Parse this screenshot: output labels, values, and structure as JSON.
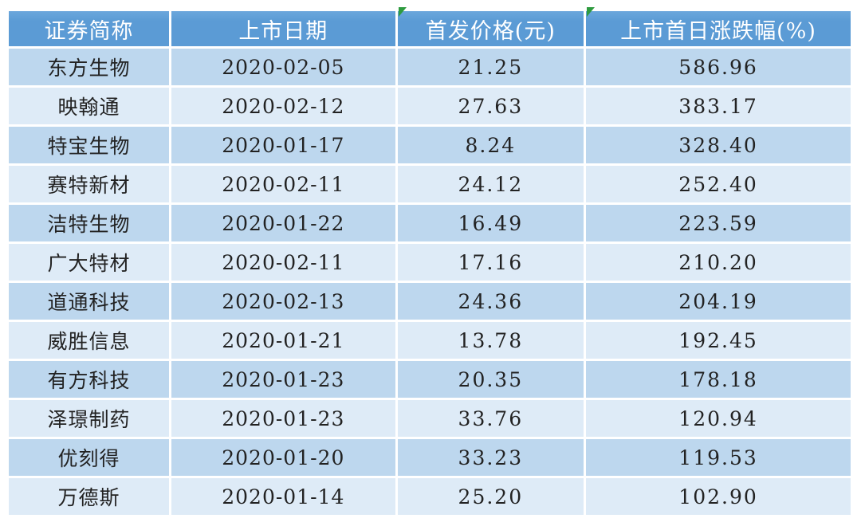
{
  "colors": {
    "header_bg": "#5B9BD5",
    "row_dark": "#BDD7EE",
    "row_light": "#DEEBF7",
    "header_text": "#FFFFFF",
    "body_text": "#222222",
    "error_marker_green": "#2E9B3F",
    "page_bg": "#FFFFFF"
  },
  "table": {
    "columns": [
      {
        "label": "证券简称",
        "error_marker": false
      },
      {
        "label": "上市日期",
        "error_marker": false
      },
      {
        "label": "首发价格(元)",
        "error_marker": true
      },
      {
        "label": "上市首日涨跌幅(%)",
        "error_marker": true
      }
    ],
    "rows": [
      {
        "name": "东方生物",
        "date": "2020-02-05",
        "price": "21.25",
        "change": "586.96"
      },
      {
        "name": "映翰通",
        "date": "2020-02-12",
        "price": "27.63",
        "change": "383.17"
      },
      {
        "name": "特宝生物",
        "date": "2020-01-17",
        "price": "8.24",
        "change": "328.40"
      },
      {
        "name": "赛特新材",
        "date": "2020-02-11",
        "price": "24.12",
        "change": "252.40"
      },
      {
        "name": "洁特生物",
        "date": "2020-01-22",
        "price": "16.49",
        "change": "223.59"
      },
      {
        "name": "广大特材",
        "date": "2020-02-11",
        "price": "17.16",
        "change": "210.20"
      },
      {
        "name": "道通科技",
        "date": "2020-02-13",
        "price": "24.36",
        "change": "204.19"
      },
      {
        "name": "威胜信息",
        "date": "2020-01-21",
        "price": "13.78",
        "change": "192.45"
      },
      {
        "name": "有方科技",
        "date": "2020-01-23",
        "price": "20.35",
        "change": "178.18"
      },
      {
        "name": "泽璟制药",
        "date": "2020-01-23",
        "price": "33.76",
        "change": "120.94"
      },
      {
        "name": "优刻得",
        "date": "2020-01-20",
        "price": "33.23",
        "change": "119.53"
      },
      {
        "name": "万德斯",
        "date": "2020-01-14",
        "price": "25.20",
        "change": "102.90"
      }
    ]
  }
}
